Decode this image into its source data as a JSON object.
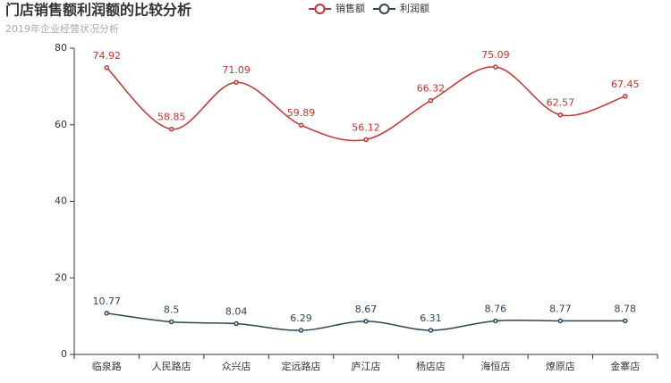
{
  "chart_data": {
    "type": "line",
    "title": "门店销售额利润额的比较分析",
    "subtitle": "2019年企业经营状况分析",
    "categories": [
      "临泉路",
      "人民路店",
      "众兴店",
      "定远路店",
      "庐江店",
      "杨店店",
      "海恒店",
      "燎原店",
      "金寨店"
    ],
    "series": [
      {
        "name": "销售额",
        "color": "#c23531",
        "values": [
          74.92,
          58.85,
          71.09,
          59.89,
          56.12,
          66.32,
          75.09,
          62.57,
          67.45
        ]
      },
      {
        "name": "利润额",
        "color": "#2f4554",
        "values": [
          10.77,
          8.5,
          8.04,
          6.29,
          8.67,
          6.31,
          8.76,
          8.77,
          8.78
        ]
      }
    ],
    "ylim": [
      0,
      80
    ],
    "yticks": [
      0,
      20,
      40,
      60,
      80
    ],
    "smooth": true
  }
}
